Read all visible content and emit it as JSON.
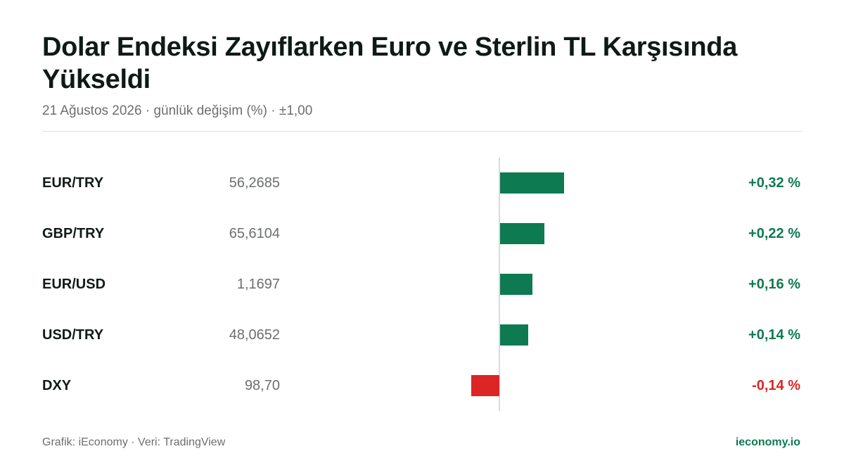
{
  "header": {
    "title": "Dolar Endeksi Zayıflarken Euro ve Sterlin TL Karşısında Yükseldi",
    "subtitle": "21 Ağustos 2026 · günlük değişim (%) · ±1,00"
  },
  "chart_data": {
    "type": "bar",
    "orientation": "horizontal",
    "title": "Dolar Endeksi Zayıflarken Euro ve Sterlin TL Karşısında Yükseldi",
    "xlim": [
      -1.0,
      1.0
    ],
    "categories": [
      "EUR/TRY",
      "GBP/TRY",
      "EUR/USD",
      "USD/TRY",
      "DXY"
    ],
    "prices": [
      "56,2685",
      "65,6104",
      "1,1697",
      "48,0652",
      "98,70"
    ],
    "values": [
      0.32,
      0.22,
      0.16,
      0.14,
      -0.14
    ],
    "value_labels": [
      "+0,32 %",
      "+0,22 %",
      "+0,16 %",
      "+0,14 %",
      "-0,14 %"
    ],
    "colors": {
      "positive": "#0e7a52",
      "negative": "#dc2626"
    }
  },
  "footer": {
    "source": "Grafik: iEconomy · Veri: TradingView",
    "brand": "ieconomy.io"
  }
}
